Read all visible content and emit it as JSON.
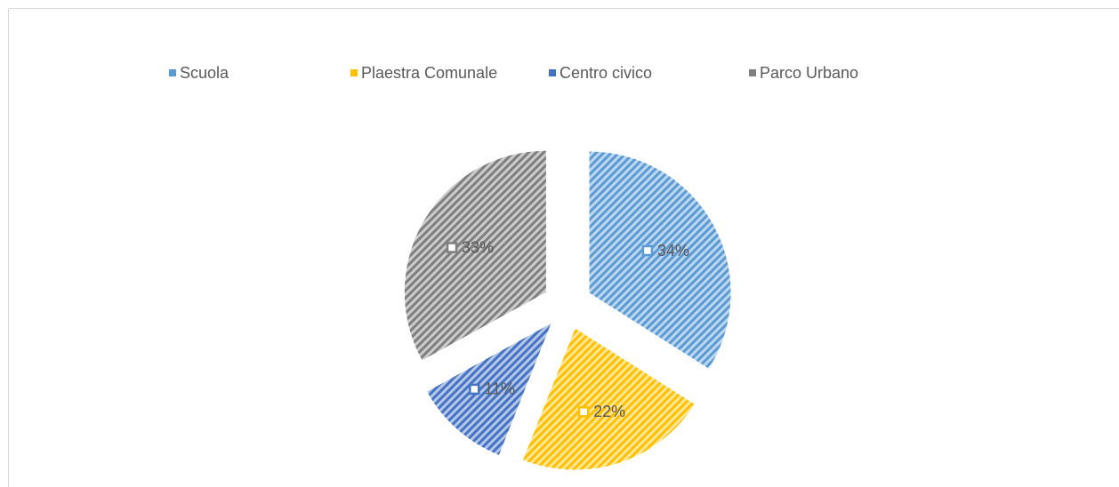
{
  "chart_data": {
    "type": "pie",
    "categories": [
      "Scuola",
      "Plaestra Comunale",
      "Centro civico",
      "Parco Urbano"
    ],
    "values": [
      34,
      22,
      11,
      33
    ],
    "value_labels": [
      "34%",
      "22%",
      "11%",
      "33%"
    ],
    "colors": [
      "#5b9bd5",
      "#ffc000",
      "#4472c4",
      "#7f7f7f"
    ],
    "legend": "top"
  }
}
